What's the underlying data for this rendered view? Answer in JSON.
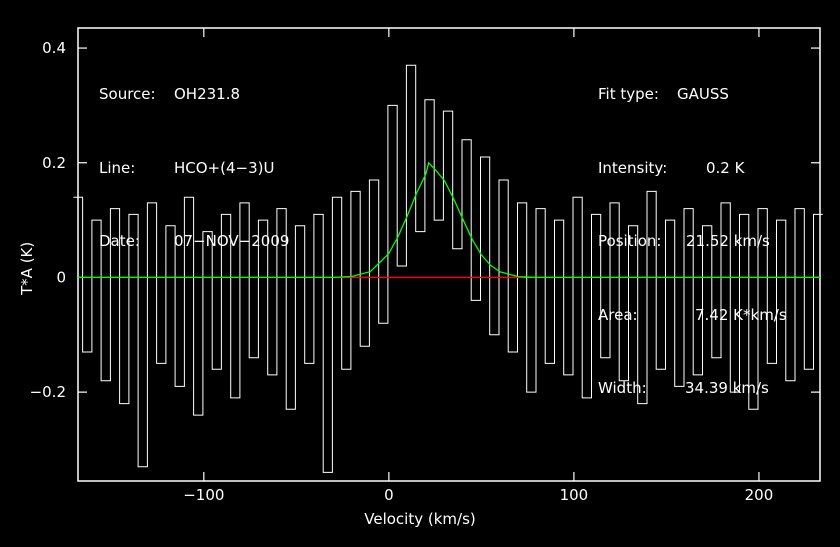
{
  "header_left": {
    "source_label": "Source:",
    "source_value": "OH231.8",
    "line_label": "Line:",
    "line_value": "HCO+(4−3)U",
    "date_label": "Date:",
    "date_value": "07−NOV−2009"
  },
  "header_right": {
    "fit_type_label": "Fit type:",
    "fit_type_value": "GAUSS",
    "intensity_label": "Intensity:",
    "intensity_value": "0.2 K",
    "position_label": "Position:",
    "position_value": "21.52 km/s",
    "area_label": "Area:",
    "area_value": "7.42 K*km/s",
    "width_label": "Width:",
    "width_value": "34.39 km/s"
  },
  "colors": {
    "background": "#000000",
    "spectrum": "#ffffff",
    "fit": "#00ff00",
    "baseline_window": "#ff0000"
  },
  "chart_data": {
    "type": "line",
    "xlabel": "Velocity (km/s)",
    "ylabel": "T*A (K)",
    "xlim": [
      -168,
      233
    ],
    "ylim": [
      -0.355,
      0.435
    ],
    "x_ticks": [
      -100,
      0,
      100,
      200
    ],
    "x_tick_labels": [
      "−100",
      "0",
      "100",
      "200"
    ],
    "y_ticks": [
      -0.2,
      0,
      0.2,
      0.4
    ],
    "y_tick_labels": [
      "−0.2",
      "0",
      "0.2",
      "0.4"
    ],
    "grid": false,
    "series": [
      {
        "x": [
          -168,
          -163,
          -158,
          -153,
          -148,
          -143,
          -138,
          -133,
          -128,
          -123,
          -118,
          -113,
          -108,
          -103,
          -98,
          -93,
          -88,
          -83,
          -78,
          -73,
          -68,
          -63,
          -58,
          -53,
          -48,
          -43,
          -38,
          -33,
          -28,
          -23,
          -18,
          -13,
          -8,
          -3,
          2,
          7,
          12,
          17,
          22,
          27,
          32,
          37,
          42,
          47,
          52,
          57,
          62,
          67,
          72,
          77,
          82,
          87,
          92,
          97,
          102,
          107,
          112,
          117,
          122,
          127,
          132,
          137,
          142,
          147,
          152,
          157,
          162,
          167,
          172,
          177,
          182,
          187,
          192,
          197,
          202,
          207,
          212,
          217,
          222,
          227,
          232
        ],
        "y": [
          0.14,
          -0.13,
          0.1,
          -0.18,
          0.12,
          -0.22,
          0.11,
          -0.33,
          0.13,
          -0.15,
          0.09,
          -0.19,
          0.14,
          -0.24,
          0.08,
          -0.16,
          0.11,
          -0.21,
          0.13,
          -0.14,
          0.1,
          -0.17,
          0.12,
          -0.23,
          0.09,
          -0.15,
          0.11,
          -0.34,
          0.14,
          -0.16,
          0.15,
          -0.12,
          0.17,
          -0.08,
          0.3,
          0.02,
          0.37,
          0.08,
          0.31,
          0.1,
          0.29,
          0.05,
          0.24,
          -0.04,
          0.21,
          -0.1,
          0.17,
          -0.13,
          0.13,
          -0.2,
          0.12,
          -0.15,
          0.1,
          -0.17,
          0.14,
          -0.21,
          0.11,
          -0.14,
          0.13,
          -0.18,
          0.09,
          -0.22,
          0.15,
          -0.16,
          0.1,
          -0.19,
          0.12,
          -0.17,
          0.09,
          -0.14,
          0.13,
          -0.2,
          0.11,
          -0.23,
          0.12,
          -0.15,
          0.1,
          -0.18,
          0.12,
          -0.16,
          0.11
        ]
      },
      {
        "name": "GAUSS fit",
        "x": [
          -168,
          -30,
          -20,
          -10,
          0,
          5,
          10,
          15,
          20,
          21.52,
          25,
          30,
          35,
          40,
          45,
          50,
          55,
          60,
          70,
          80,
          233
        ],
        "y": [
          0,
          0,
          0.0016,
          0.0102,
          0.042,
          0.0716,
          0.1078,
          0.147,
          0.1805,
          0.2,
          0.1883,
          0.1689,
          0.1375,
          0.1013,
          0.0666,
          0.0393,
          0.0212,
          0.0098,
          0.0015,
          0.0001,
          0
        ]
      }
    ],
    "window": {
      "x": [
        -30,
        73
      ]
    }
  }
}
